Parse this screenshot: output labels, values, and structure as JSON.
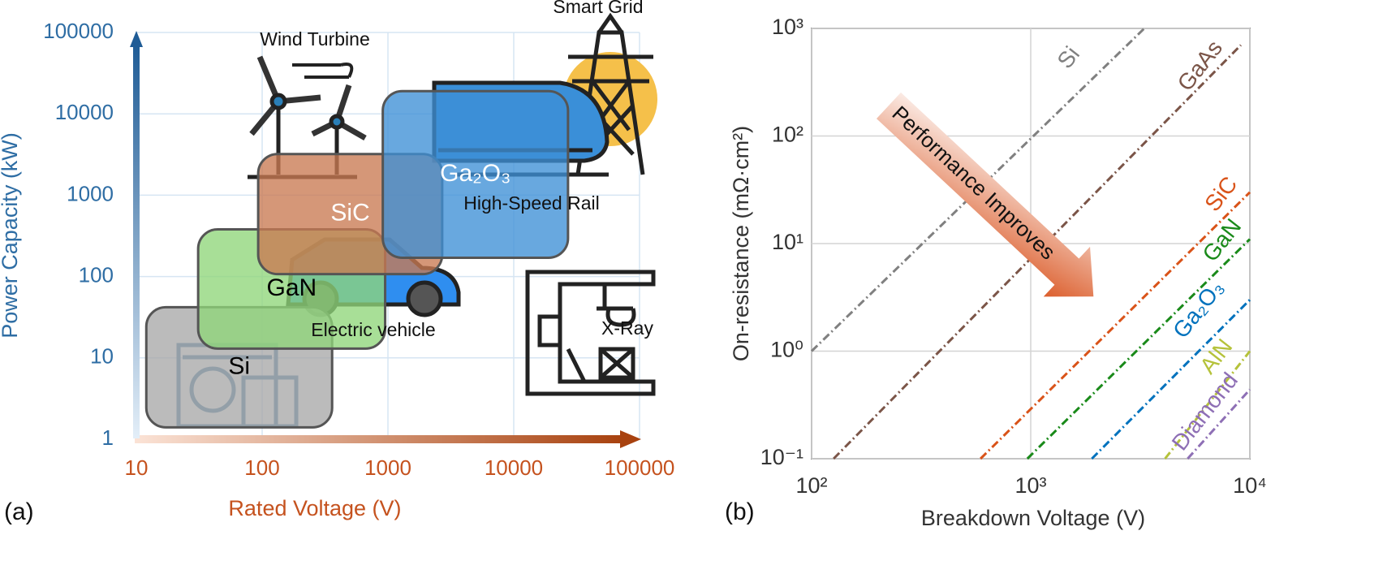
{
  "chart_data": [
    {
      "type": "region",
      "panel_label": "(a)",
      "xlabel": "Rated Voltage (V)",
      "ylabel": "Power Capacity (kW)",
      "xscale": "log",
      "yscale": "log",
      "grid": true,
      "xlim": [
        10,
        100000
      ],
      "ylim": [
        1,
        100000
      ],
      "xticks": [
        10,
        100,
        1000,
        10000,
        100000
      ],
      "yticks": [
        1,
        10,
        100,
        1000,
        10000,
        100000
      ],
      "xtick_color": "#c5521e",
      "ytick_color": "#2e6da4",
      "annotations": [
        "Wind Turbine",
        "Smart Grid",
        "High-Speed Rail",
        "Electric vehicle",
        "X-Ray"
      ],
      "series": [
        {
          "name": "Si",
          "color": "#a8a8a8",
          "label_color": "#000000",
          "x": [
            12,
            360
          ],
          "values": [
            1.4,
            42
          ]
        },
        {
          "name": "GaN",
          "color": "#8fd67a",
          "label_color": "#000000",
          "x": [
            31,
            950
          ],
          "values": [
            13,
            380
          ]
        },
        {
          "name": "SiC",
          "color": "#c97a52",
          "label_color": "#ffffff",
          "x": [
            93,
            2700
          ],
          "values": [
            107,
            3200
          ]
        },
        {
          "name": "Ga₂O₃",
          "color": "#3d8fd6",
          "label_color": "#ffffff",
          "x": [
            910,
            27000
          ],
          "values": [
            170,
            19000
          ]
        }
      ]
    },
    {
      "type": "line",
      "panel_label": "(b)",
      "xlabel": "Breakdown Voltage (V)",
      "ylabel": "On-resistance (mΩ·cm²)",
      "xscale": "log",
      "yscale": "log",
      "grid": true,
      "annotation": "Performance Improves",
      "xlim": [
        100,
        10000
      ],
      "ylim": [
        0.1,
        1000
      ],
      "xticks": [
        {
          "value": 100,
          "label": "10²"
        },
        {
          "value": 1000,
          "label": "10³"
        },
        {
          "value": 10000,
          "label": "10⁴"
        }
      ],
      "yticks": [
        {
          "value": 0.1,
          "label": "10⁻¹"
        },
        {
          "value": 1,
          "label": "10⁰"
        },
        {
          "value": 10,
          "label": "10¹"
        },
        {
          "value": 100,
          "label": "10²"
        },
        {
          "value": 1000,
          "label": "10³"
        }
      ],
      "xtick_color": "#333333",
      "ytick_color": "#333333",
      "series": [
        {
          "name": "Si",
          "color": "#808080",
          "x": [
            100,
            3300
          ],
          "values": [
            1,
            1000
          ]
        },
        {
          "name": "GaAs",
          "color": "#7b5548",
          "x": [
            126,
            9100
          ],
          "values": [
            0.1,
            700
          ]
        },
        {
          "name": "SiC",
          "color": "#d95319",
          "x": [
            590,
            10000
          ],
          "values": [
            0.1,
            30
          ]
        },
        {
          "name": "GaN",
          "color": "#1a8a1a",
          "x": [
            965,
            10000
          ],
          "values": [
            0.1,
            11
          ]
        },
        {
          "name": "Ga₂O₃",
          "color": "#0072bd",
          "x": [
            1900,
            10000
          ],
          "values": [
            0.1,
            3
          ]
        },
        {
          "name": "AlN",
          "color": "#b5c23a",
          "x": [
            4100,
            10000
          ],
          "values": [
            0.1,
            1
          ]
        },
        {
          "name": "Diamond",
          "color": "#8e6fb5",
          "x": [
            5200,
            10000
          ],
          "values": [
            0.1,
            0.44
          ]
        }
      ]
    }
  ]
}
